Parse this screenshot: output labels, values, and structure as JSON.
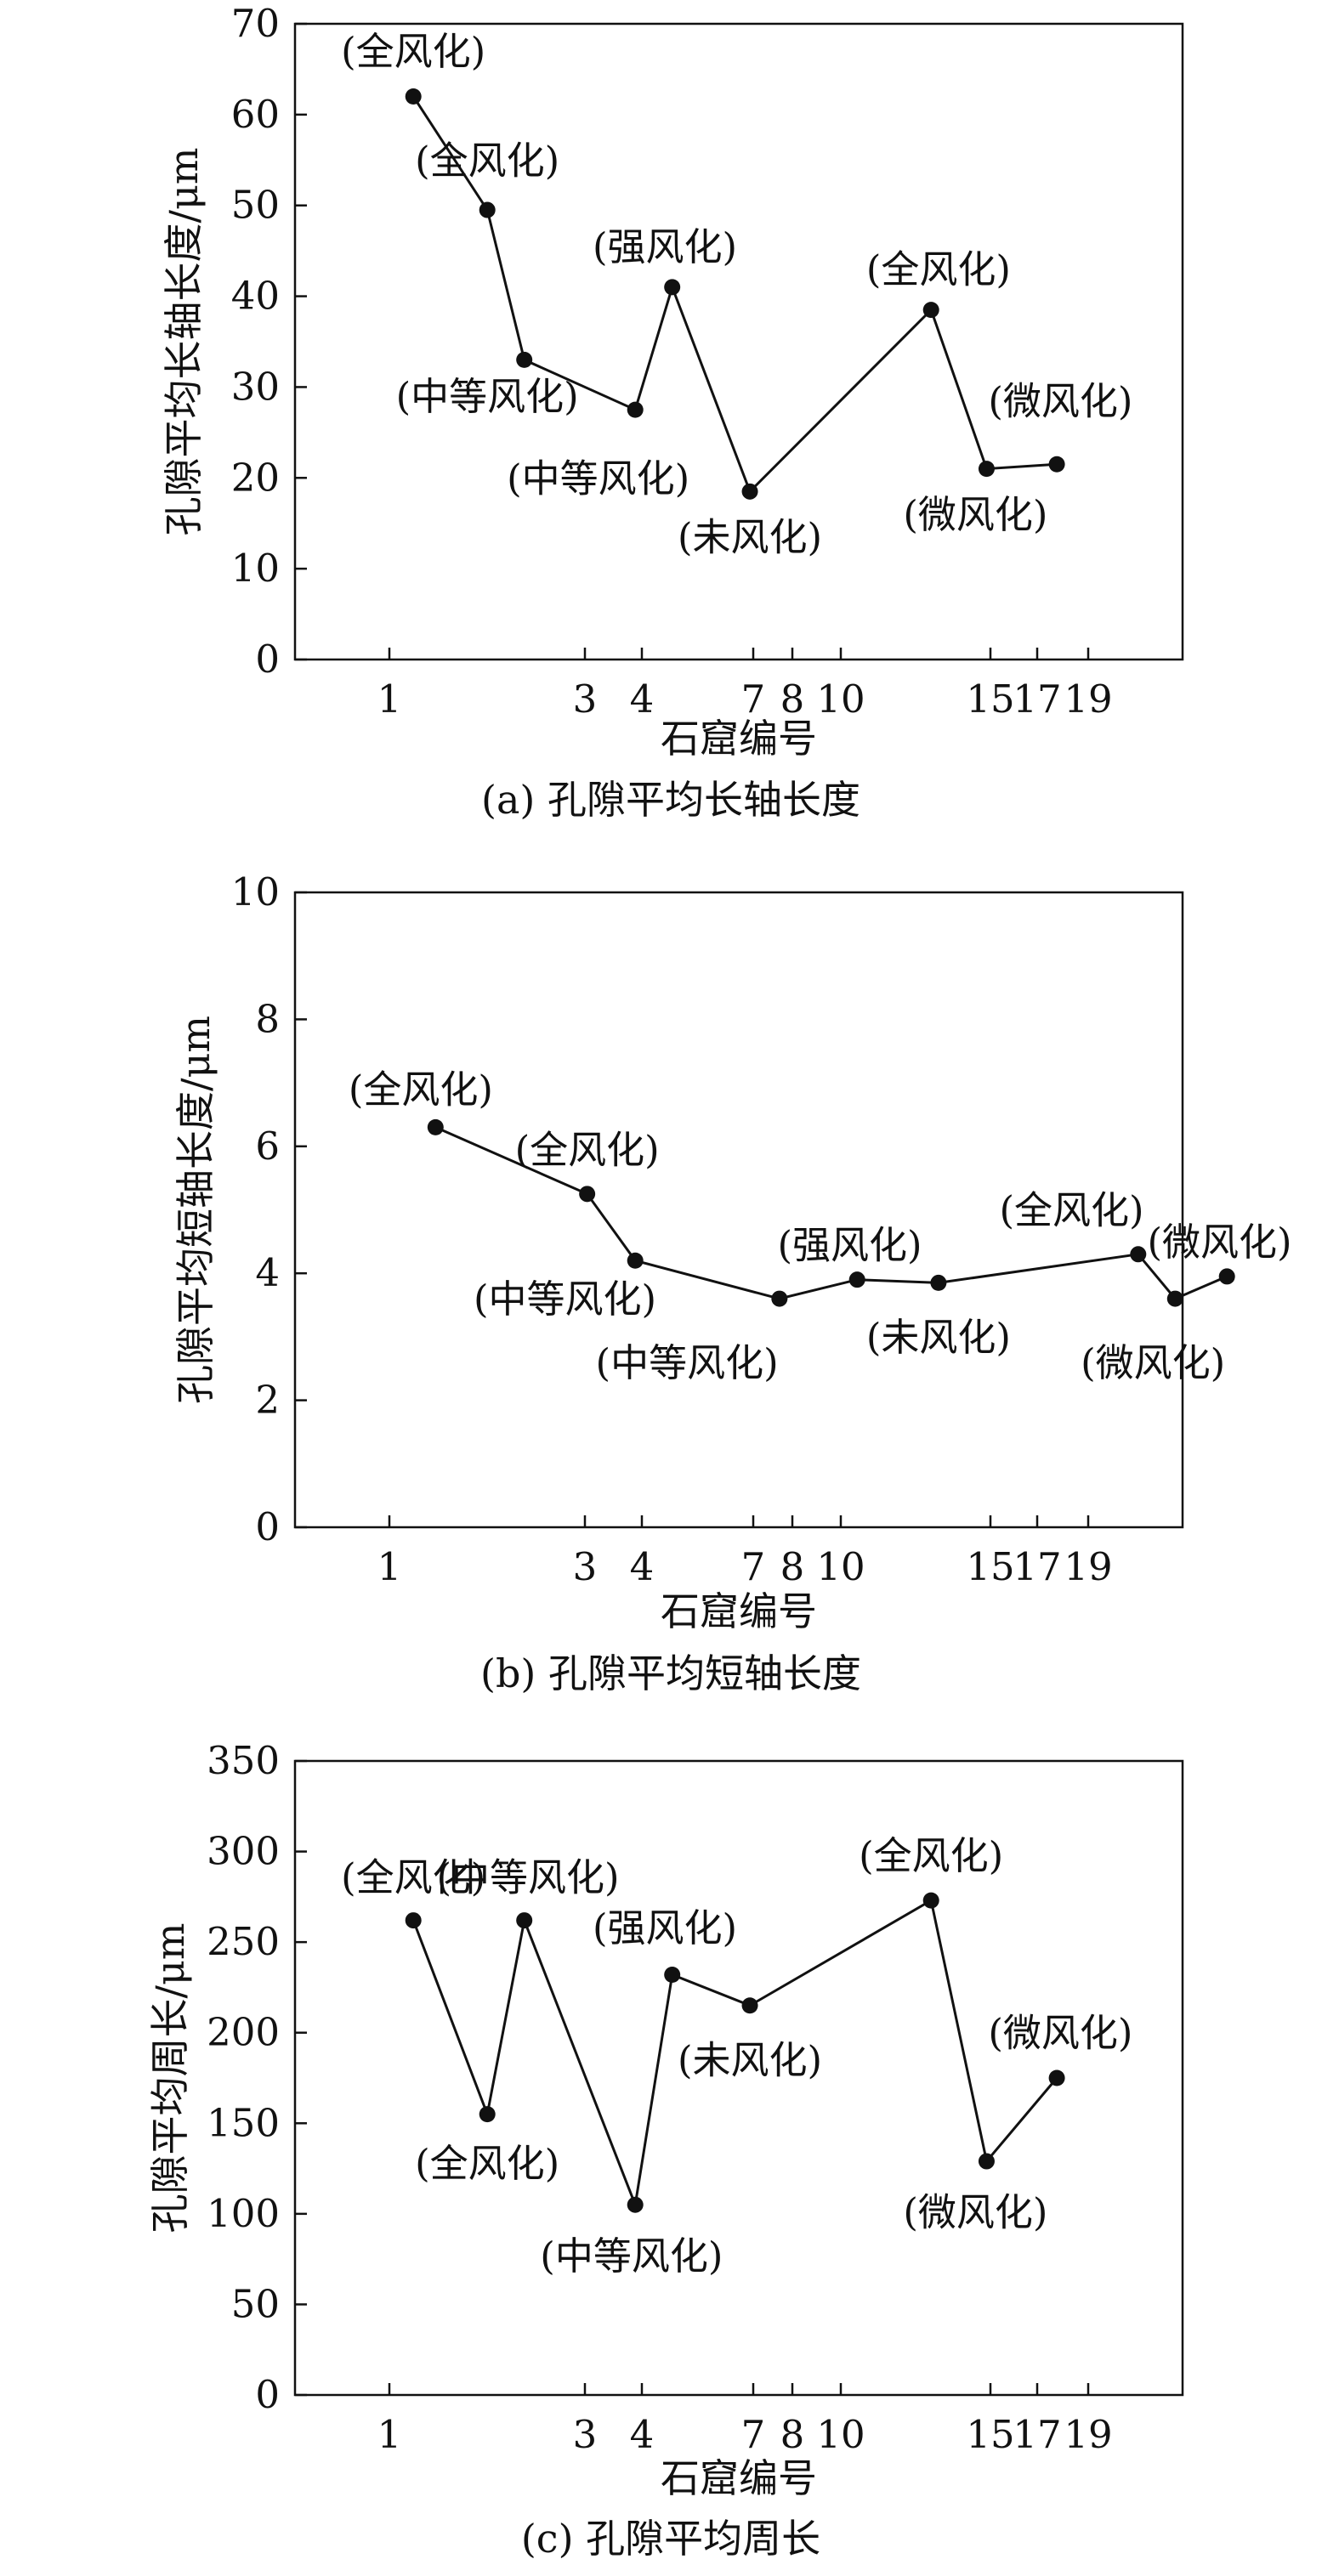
{
  "chart_data": [
    {
      "type": "line",
      "caption": "(a) 孔隙平均长轴长度",
      "xlabel": "石窟编号",
      "ylabel": "孔隙平均长轴长度/μm",
      "x_ticks": [
        1,
        3,
        4,
        7,
        8,
        10,
        15,
        17,
        19
      ],
      "x_tick_labels": [
        "1",
        "3",
        "4",
        "7",
        "8",
        "10",
        "15",
        "17",
        "19"
      ],
      "xlim": [
        -2,
        22
      ],
      "ylim": [
        0,
        70
      ],
      "y_ticks": [
        0,
        10,
        20,
        30,
        40,
        50,
        60,
        70
      ],
      "points": [
        {
          "x": 1.2,
          "y": 62,
          "label": "(全风化)",
          "label_pos": [
            1.2,
            67
          ]
        },
        {
          "x": 3.2,
          "y": 49.5,
          "label": "(全风化)",
          "label_pos": [
            3.2,
            55
          ]
        },
        {
          "x": 4.2,
          "y": 33,
          "label": "(中等风化)",
          "label_pos": [
            3.2,
            29
          ]
        },
        {
          "x": 7.2,
          "y": 27.5,
          "label": "(中等风化)",
          "label_pos": [
            6.2,
            20
          ]
        },
        {
          "x": 8.2,
          "y": 41,
          "label": "(强风化)",
          "label_pos": [
            8.0,
            45.5
          ]
        },
        {
          "x": 10.3,
          "y": 18.5,
          "label": "(未风化)",
          "label_pos": [
            10.3,
            13.5
          ]
        },
        {
          "x": 15.2,
          "y": 38.5,
          "label": "(全风化)",
          "label_pos": [
            15.4,
            43
          ]
        },
        {
          "x": 16.7,
          "y": 21,
          "label": "(微风化)",
          "label_pos": [
            16.4,
            16
          ]
        },
        {
          "x": 18.6,
          "y": 21.5,
          "label": "(微风化)",
          "label_pos": [
            18.7,
            28.5
          ]
        }
      ]
    },
    {
      "type": "line",
      "caption": "(b) 孔隙平均短轴长度",
      "xlabel": "石窟编号",
      "ylabel": "孔隙平均短轴长度/μm",
      "x_ticks": [
        1,
        3,
        4,
        7,
        8,
        10,
        15,
        17,
        19
      ],
      "x_tick_labels": [
        "1",
        "3",
        "4",
        "7",
        "8",
        "10",
        "15",
        "17",
        "19"
      ],
      "xlim": [
        -2,
        22
      ],
      "ylim": [
        0,
        10
      ],
      "y_ticks": [
        0,
        2,
        4,
        6,
        8,
        10
      ],
      "points": [
        {
          "x": 1.8,
          "y": 6.3,
          "label": "(全风化)",
          "label_pos": [
            1.4,
            6.9
          ]
        },
        {
          "x": 5.9,
          "y": 5.25,
          "label": "(全风化)",
          "label_pos": [
            5.9,
            5.95
          ]
        },
        {
          "x": 7.2,
          "y": 4.2,
          "label": "(中等风化)",
          "label_pos": [
            5.3,
            3.6
          ]
        },
        {
          "x": 11.1,
          "y": 3.6,
          "label": "(中等风化)",
          "label_pos": [
            8.6,
            2.6
          ]
        },
        {
          "x": 13.2,
          "y": 3.9,
          "label": "(强风化)",
          "label_pos": [
            13.0,
            4.45
          ]
        },
        {
          "x": 15.4,
          "y": 3.85,
          "label": "(未风化)",
          "label_pos": [
            15.4,
            3.0
          ]
        },
        {
          "x": 20.8,
          "y": 4.3,
          "label": "(全风化)",
          "label_pos": [
            19.0,
            5.0
          ]
        },
        {
          "x": 21.8,
          "y": 3.6,
          "label": "(微风化)",
          "label_pos": [
            21.2,
            2.6
          ]
        },
        {
          "x": 23.2,
          "y": 3.95,
          "label": "(微风化)",
          "label_pos": [
            23.0,
            4.5
          ]
        }
      ]
    },
    {
      "type": "line",
      "caption": "(c) 孔隙平均周长",
      "xlabel": "石窟编号",
      "ylabel": "孔隙平均周长/μm",
      "x_ticks": [
        1,
        3,
        4,
        7,
        8,
        10,
        15,
        17,
        19
      ],
      "x_tick_labels": [
        "1",
        "3",
        "4",
        "7",
        "8",
        "10",
        "15",
        "17",
        "19"
      ],
      "xlim": [
        -2,
        22
      ],
      "ylim": [
        0,
        350
      ],
      "y_ticks": [
        0,
        50,
        100,
        150,
        200,
        250,
        300,
        350
      ],
      "points": [
        {
          "x": 1.2,
          "y": 262,
          "label": "(全风化)",
          "label_pos": [
            1.2,
            286
          ]
        },
        {
          "x": 3.2,
          "y": 155,
          "label": "(全风化)",
          "label_pos": [
            3.2,
            128
          ]
        },
        {
          "x": 4.2,
          "y": 262,
          "label": "(中等风化)",
          "label_pos": [
            4.3,
            286
          ]
        },
        {
          "x": 7.2,
          "y": 105,
          "label": "(中等风化)",
          "label_pos": [
            7.1,
            77
          ]
        },
        {
          "x": 8.2,
          "y": 232,
          "label": "(强风化)",
          "label_pos": [
            8.0,
            258
          ]
        },
        {
          "x": 10.3,
          "y": 215,
          "label": "(未风化)",
          "label_pos": [
            10.3,
            185
          ]
        },
        {
          "x": 15.2,
          "y": 273,
          "label": "(全风化)",
          "label_pos": [
            15.2,
            298
          ]
        },
        {
          "x": 16.7,
          "y": 129,
          "label": "(微风化)",
          "label_pos": [
            16.4,
            101
          ]
        },
        {
          "x": 18.6,
          "y": 175,
          "label": "(微风化)",
          "label_pos": [
            18.7,
            200
          ]
        }
      ]
    }
  ]
}
